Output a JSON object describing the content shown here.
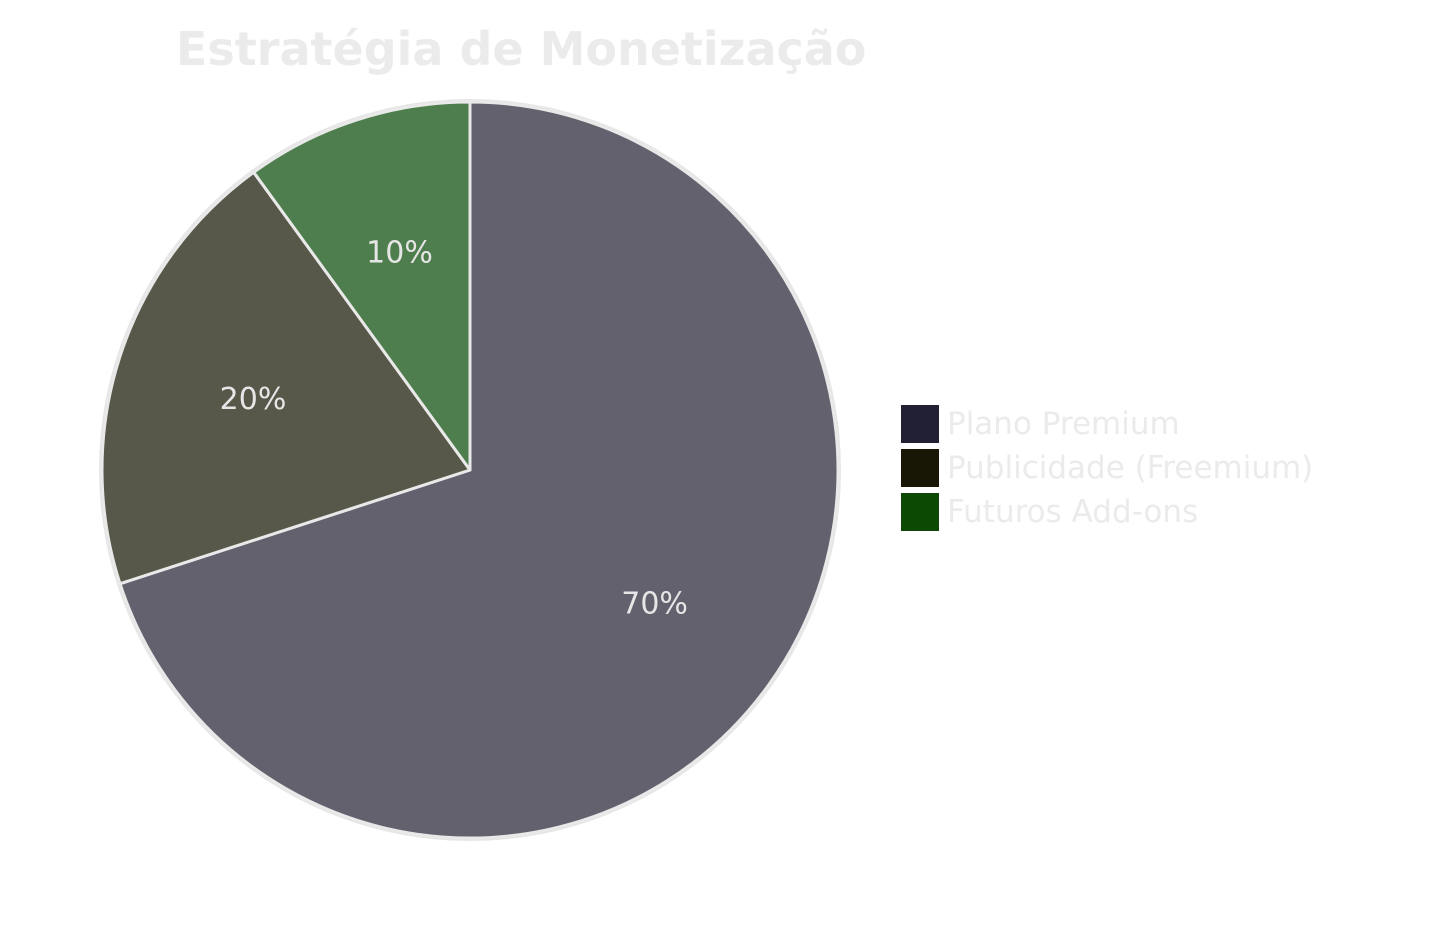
{
  "chart_data": {
    "type": "pie",
    "title": "Estratégia de Monetização",
    "categories": [
      "Plano Premium",
      "Publicidade (Freemium)",
      "Futuros Add-ons"
    ],
    "values": [
      70,
      20,
      10
    ],
    "value_labels": [
      "70%",
      "20%",
      "10%"
    ],
    "slice_colors": [
      "#62616d",
      "#58584a",
      "#4e7e4d"
    ],
    "legend_colors": [
      "#222034",
      "#181604",
      "#0c4a04"
    ],
    "start_angle": "12 o'clock",
    "direction": "clockwise",
    "legend_position": "right"
  }
}
